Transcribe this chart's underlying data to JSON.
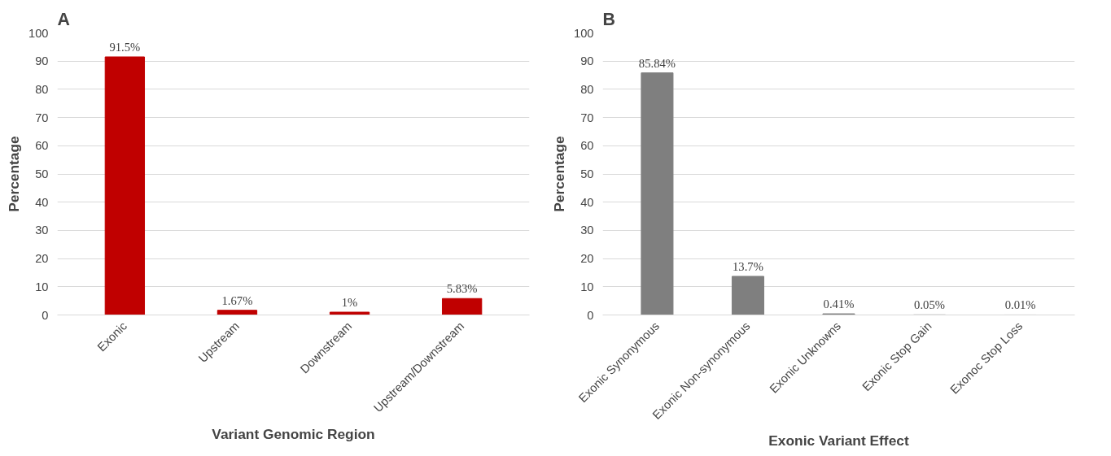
{
  "chart_data": [
    {
      "type": "bar",
      "title": "A",
      "xlabel": "Variant Genomic Region",
      "ylabel": "Percentage",
      "categories": [
        "Exonic",
        "Upstream",
        "Downstream",
        "Upstream/Downstream"
      ],
      "values": [
        91.5,
        1.67,
        1,
        5.83
      ],
      "color": "#c00000",
      "value_labels": [
        "91.5%",
        "1.67%",
        "1%",
        "5.83%"
      ],
      "ylim": [
        0,
        100
      ],
      "yticks": [
        0,
        10,
        20,
        30,
        40,
        50,
        60,
        70,
        80,
        90,
        100
      ],
      "grid": "y"
    },
    {
      "type": "bar",
      "title": "B",
      "xlabel": "Exonic Variant Effect",
      "ylabel": "Percentage",
      "categories": [
        "Exonic Synonymous",
        "Exonic Non-synonymous",
        "Exonic Unknowns",
        "Exonic Stop Gain",
        "Exonoc Stop Loss"
      ],
      "values": [
        85.84,
        13.7,
        0.41,
        0.05,
        0.01
      ],
      "color": "#7f7f7f",
      "value_labels": [
        "85.84%",
        "13.7%",
        "0.41%",
        "0.05%",
        "0.01%"
      ],
      "ylim": [
        0,
        100
      ],
      "yticks": [
        0,
        10,
        20,
        30,
        40,
        50,
        60,
        70,
        80,
        90,
        100
      ],
      "grid": "y"
    }
  ]
}
